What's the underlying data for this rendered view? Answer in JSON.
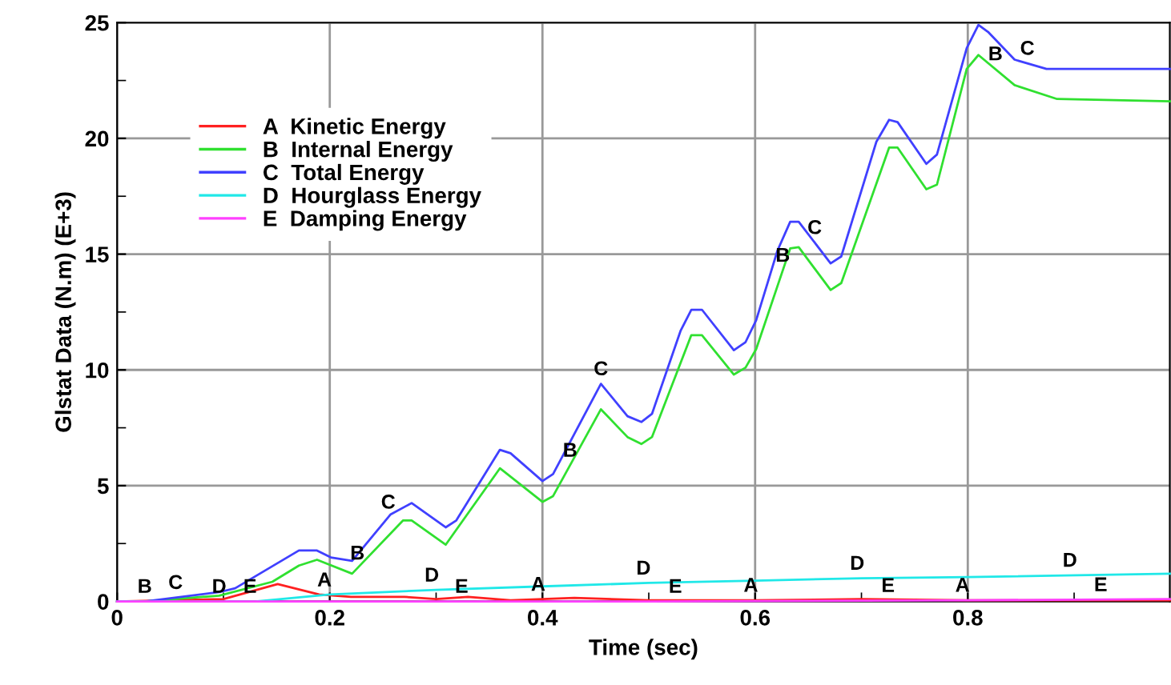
{
  "chart_data": {
    "type": "line",
    "xlabel": "Time (sec)",
    "ylabel": "Glstat Data (N.m) (E+3)",
    "xlim": [
      0,
      0.99
    ],
    "ylim": [
      0,
      25
    ],
    "xticks": [
      0,
      {
        "value": 0.1,
        "label": null
      },
      0.2,
      {
        "value": 0.3,
        "label": null
      },
      0.4,
      {
        "value": 0.5,
        "label": null
      },
      0.6,
      {
        "value": 0.7,
        "label": null
      },
      0.8,
      {
        "value": 0.9,
        "label": null
      }
    ],
    "yticks": [
      0,
      {
        "value": 2.5,
        "label": null
      },
      5,
      {
        "value": 7.5,
        "label": null
      },
      10,
      {
        "value": 12.5,
        "label": null
      },
      15,
      {
        "value": 17.5,
        "label": null
      },
      20,
      {
        "value": 22.5,
        "label": null
      },
      25
    ],
    "grid": true,
    "legend": "top left",
    "marker": "none",
    "line_style": "solid",
    "series": [
      {
        "name": "A  Kinetic Energy",
        "color": "#ff2020",
        "x": [
          0,
          0.1,
          0.151,
          0.19,
          0.22,
          0.27,
          0.3,
          0.33,
          0.37,
          0.43,
          0.5,
          0.6,
          0.7,
          0.8,
          0.99
        ],
        "values": [
          0,
          0.1,
          0.75,
          0.3,
          0.2,
          0.2,
          0.1,
          0.2,
          0.05,
          0.15,
          0.05,
          0.05,
          0.1,
          0.05,
          0.05
        ]
      },
      {
        "name": "B  Internal Energy",
        "color": "#30e030",
        "x": [
          0,
          0.026,
          0.096,
          0.146,
          0.171,
          0.188,
          0.221,
          0.269,
          0.277,
          0.309,
          0.36,
          0.4,
          0.41,
          0.455,
          0.48,
          0.493,
          0.503,
          0.54,
          0.55,
          0.58,
          0.591,
          0.601,
          0.633,
          0.641,
          0.671,
          0.681,
          0.726,
          0.734,
          0.761,
          0.771,
          0.799,
          0.81,
          0.844,
          0.884,
          0.99
        ],
        "values": [
          0,
          0,
          0.25,
          0.85,
          1.55,
          1.8,
          1.2,
          3.5,
          3.5,
          2.45,
          5.75,
          4.3,
          4.55,
          8.3,
          7.1,
          6.8,
          7.1,
          11.5,
          11.5,
          9.8,
          10.1,
          10.9,
          15.25,
          15.3,
          13.45,
          13.75,
          19.6,
          19.6,
          17.8,
          18.0,
          23.0,
          23.6,
          22.3,
          21.7,
          21.6
        ]
      },
      {
        "name": "C  Total Energy",
        "color": "#4040ff",
        "x": [
          0,
          0.026,
          0.096,
          0.111,
          0.171,
          0.188,
          0.201,
          0.221,
          0.257,
          0.277,
          0.309,
          0.319,
          0.36,
          0.37,
          0.4,
          0.41,
          0.455,
          0.48,
          0.493,
          0.503,
          0.53,
          0.54,
          0.55,
          0.58,
          0.591,
          0.601,
          0.621,
          0.633,
          0.641,
          0.671,
          0.681,
          0.714,
          0.726,
          0.734,
          0.761,
          0.771,
          0.799,
          0.81,
          0.819,
          0.844,
          0.874,
          0.99
        ],
        "values": [
          0,
          0,
          0.4,
          0.57,
          2.2,
          2.2,
          1.9,
          1.75,
          3.75,
          4.25,
          3.2,
          3.5,
          6.55,
          6.4,
          5.2,
          5.5,
          9.4,
          8.0,
          7.75,
          8.1,
          11.7,
          12.6,
          12.6,
          10.85,
          11.2,
          12.15,
          15.15,
          16.4,
          16.4,
          14.6,
          14.9,
          19.85,
          20.8,
          20.7,
          18.9,
          19.3,
          23.9,
          24.9,
          24.6,
          23.4,
          23.0,
          23.0
        ]
      },
      {
        "name": "D  Hourglass Energy",
        "color": "#20e8e8",
        "x": [
          0,
          0.13,
          0.2,
          0.3,
          0.4,
          0.5,
          0.6,
          0.7,
          0.8,
          0.99
        ],
        "values": [
          0,
          0,
          0.3,
          0.5,
          0.65,
          0.8,
          0.9,
          1.0,
          1.05,
          1.2
        ]
      },
      {
        "name": "E  Damping Energy",
        "color": "#ff40ff",
        "x": [
          0,
          0.5,
          0.8,
          0.99
        ],
        "values": [
          0,
          0,
          0.05,
          0.1
        ]
      }
    ],
    "annotations": [
      {
        "text": "B",
        "x": 0.026,
        "y": 0
      },
      {
        "text": "C",
        "x": 0.055,
        "y": 0.17
      },
      {
        "text": "D",
        "x": 0.096,
        "y": 0
      },
      {
        "text": "E",
        "x": 0.125,
        "y": 0
      },
      {
        "text": "A",
        "x": 0.195,
        "y": 0.28
      },
      {
        "text": "B",
        "x": 0.226,
        "y": 1.44
      },
      {
        "text": "C",
        "x": 0.255,
        "y": 3.64
      },
      {
        "text": "D",
        "x": 0.296,
        "y": 0.49
      },
      {
        "text": "E",
        "x": 0.324,
        "y": 0
      },
      {
        "text": "A",
        "x": 0.396,
        "y": 0.09
      },
      {
        "text": "B",
        "x": 0.426,
        "y": 5.88
      },
      {
        "text": "C",
        "x": 0.455,
        "y": 9.4
      },
      {
        "text": "D",
        "x": 0.495,
        "y": 0.79
      },
      {
        "text": "E",
        "x": 0.525,
        "y": 0
      },
      {
        "text": "A",
        "x": 0.596,
        "y": 0.05
      },
      {
        "text": "B",
        "x": 0.626,
        "y": 14.3
      },
      {
        "text": "C",
        "x": 0.656,
        "y": 15.5
      },
      {
        "text": "D",
        "x": 0.696,
        "y": 1.0
      },
      {
        "text": "E",
        "x": 0.725,
        "y": 0.04
      },
      {
        "text": "A",
        "x": 0.795,
        "y": 0.05
      },
      {
        "text": "B",
        "x": 0.826,
        "y": 23.0
      },
      {
        "text": "C",
        "x": 0.856,
        "y": 23.24
      },
      {
        "text": "D",
        "x": 0.896,
        "y": 1.13
      },
      {
        "text": "E",
        "x": 0.925,
        "y": 0.07
      }
    ]
  }
}
